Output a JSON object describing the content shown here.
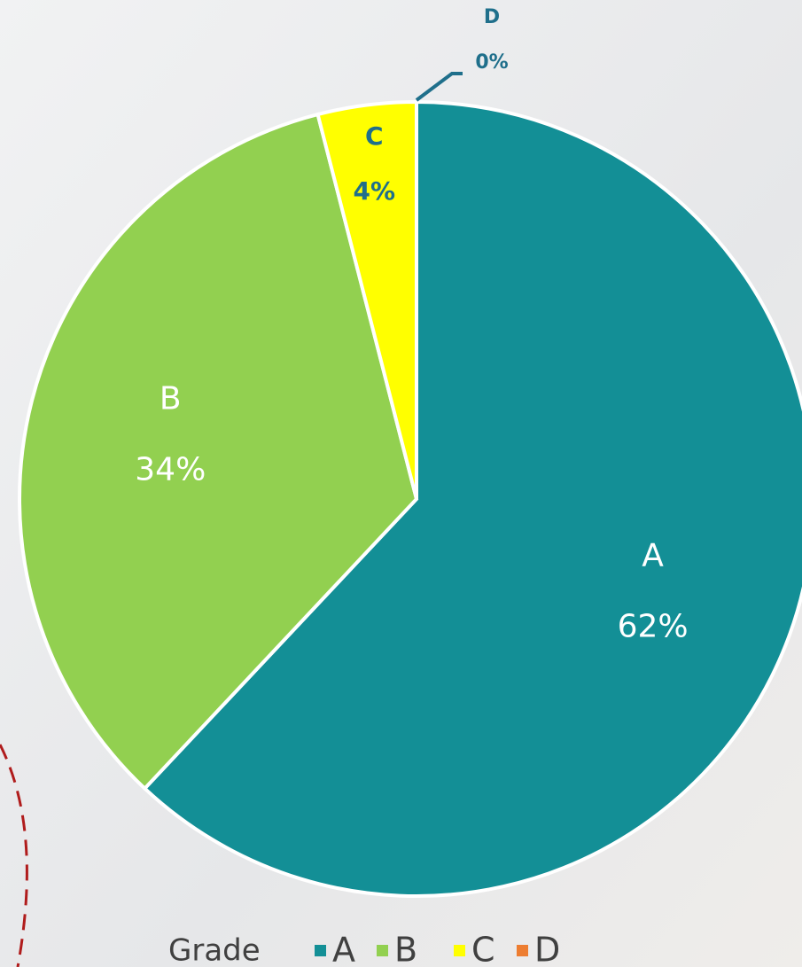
{
  "chart_data": {
    "type": "pie",
    "categories": [
      "A",
      "B",
      "C",
      "D"
    ],
    "values": [
      62,
      34,
      4,
      0
    ],
    "value_labels": [
      "62%",
      "34%",
      "4%",
      "0%"
    ],
    "colors": [
      "#138f96",
      "#92d050",
      "#ffff00",
      "#ed7d31"
    ],
    "legend_title": "Grade",
    "legend": "bottom"
  }
}
